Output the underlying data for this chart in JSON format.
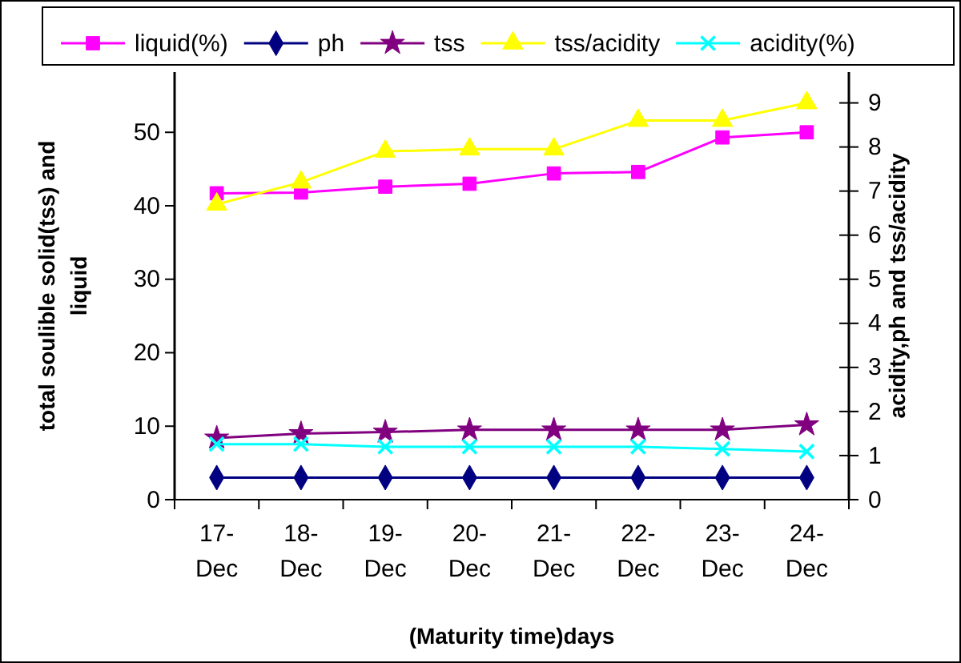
{
  "chart_data": {
    "type": "line",
    "xlabel": "(Maturity time)days",
    "ylabel": "total soulible solid(tss) and liquid",
    "y2label": "acidity,ph and tss/acidity",
    "categories": [
      "17-Dec",
      "18-Dec",
      "19-Dec",
      "20-Dec",
      "21-Dec",
      "22-Dec",
      "23-Dec",
      "24-Dec"
    ],
    "ylim": [
      0,
      58.2
    ],
    "yticks": [
      0,
      10,
      20,
      30,
      40,
      50
    ],
    "y2lim": [
      0,
      9.7
    ],
    "y2ticks": [
      0,
      1,
      2,
      3,
      4,
      5,
      6,
      7,
      8,
      9
    ],
    "legend": "top",
    "grid": false,
    "series": [
      {
        "name": "liquid(%)",
        "color": "#ff00ff",
        "marker": "square",
        "values": [
          41.7,
          41.8,
          42.6,
          43.0,
          44.4,
          44.6,
          49.3,
          50.0
        ]
      },
      {
        "name": "ph",
        "color": "#000080",
        "marker": "diamond",
        "values": [
          3.0,
          3.0,
          3.0,
          3.0,
          3.0,
          3.0,
          3.0,
          3.0
        ]
      },
      {
        "name": "tss",
        "color": "#800080",
        "marker": "star",
        "values": [
          8.4,
          9.0,
          9.2,
          9.5,
          9.5,
          9.5,
          9.5,
          10.2
        ]
      },
      {
        "name": "tss/acidity",
        "color": "#ffff00",
        "marker": "triangle",
        "axis": "y2",
        "values": [
          6.7,
          7.2,
          7.9,
          7.95,
          7.95,
          8.6,
          8.6,
          9.0
        ]
      },
      {
        "name": "acidity(%)",
        "color": "#00ffff",
        "marker": "cross",
        "axis": "y2",
        "values": [
          1.26,
          1.26,
          1.2,
          1.2,
          1.2,
          1.2,
          1.15,
          1.09
        ]
      }
    ]
  }
}
